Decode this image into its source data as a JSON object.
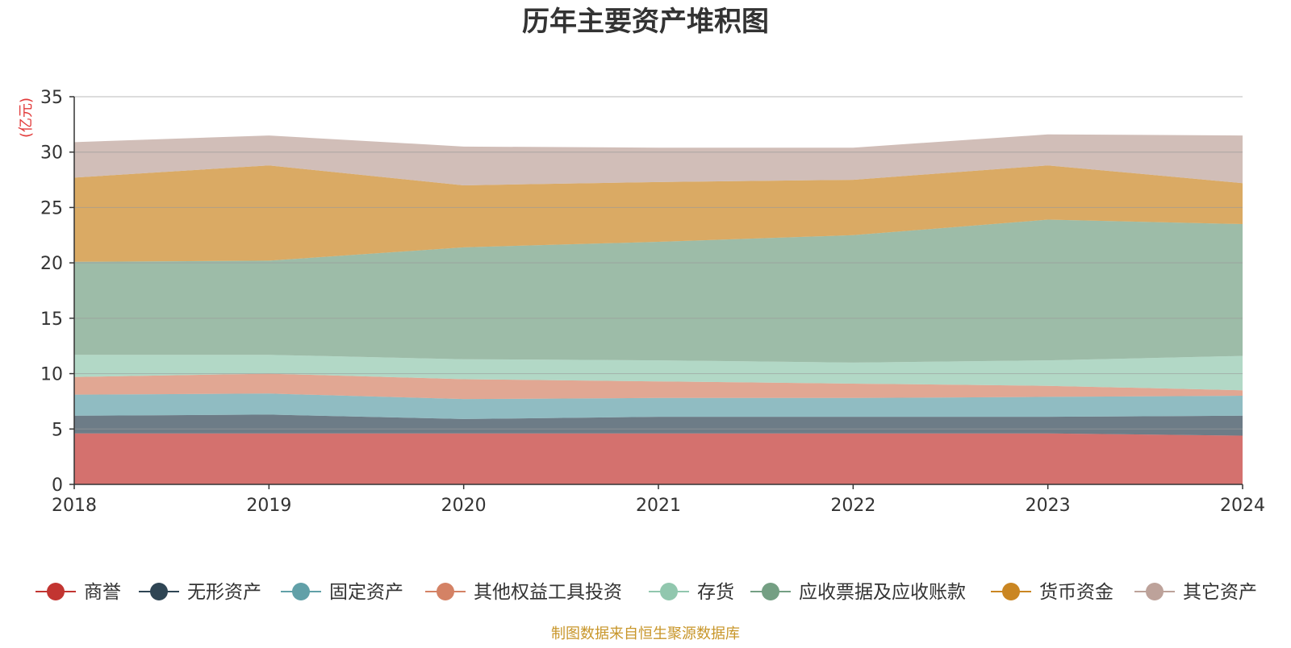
{
  "chart_data": {
    "type": "area",
    "stacked": true,
    "title": "历年主要资产堆积图",
    "ylabel": "(亿元)",
    "xlabel": "",
    "x": [
      "2018",
      "2019",
      "2020",
      "2021",
      "2022",
      "2023",
      "2024"
    ],
    "ylim": [
      0,
      35
    ],
    "yticks": [
      0,
      5,
      10,
      15,
      20,
      25,
      30,
      35
    ],
    "grid": true,
    "legend_position": "bottom",
    "source": "制图数据来自恒生聚源数据库",
    "series": [
      {
        "name": "商誉",
        "color": "#c23531",
        "values": [
          4.6,
          4.6,
          4.6,
          4.6,
          4.6,
          4.6,
          4.4
        ]
      },
      {
        "name": "无形资产",
        "color": "#2f4554",
        "values": [
          1.6,
          1.7,
          1.3,
          1.5,
          1.5,
          1.5,
          1.8
        ]
      },
      {
        "name": "固定资产",
        "color": "#61a0a8",
        "values": [
          1.9,
          1.9,
          1.8,
          1.7,
          1.7,
          1.8,
          1.8
        ]
      },
      {
        "name": "其他权益工具投资",
        "color": "#d48265",
        "values": [
          1.6,
          1.8,
          1.8,
          1.5,
          1.3,
          1.0,
          0.5
        ]
      },
      {
        "name": "存货",
        "color": "#91c7ae",
        "values": [
          2.0,
          1.7,
          1.8,
          1.9,
          1.9,
          2.3,
          3.1
        ]
      },
      {
        "name": "应收票据及应收账款",
        "color": "#749f83",
        "values": [
          8.4,
          8.5,
          10.1,
          10.7,
          11.5,
          12.7,
          11.9
        ]
      },
      {
        "name": "货币资金",
        "color": "#ca8622",
        "values": [
          7.6,
          8.6,
          5.6,
          5.4,
          5.0,
          4.9,
          3.7
        ]
      },
      {
        "name": "其它资产",
        "color": "#bda29a",
        "values": [
          3.2,
          2.7,
          3.5,
          3.1,
          2.9,
          2.8,
          4.3
        ]
      }
    ]
  }
}
